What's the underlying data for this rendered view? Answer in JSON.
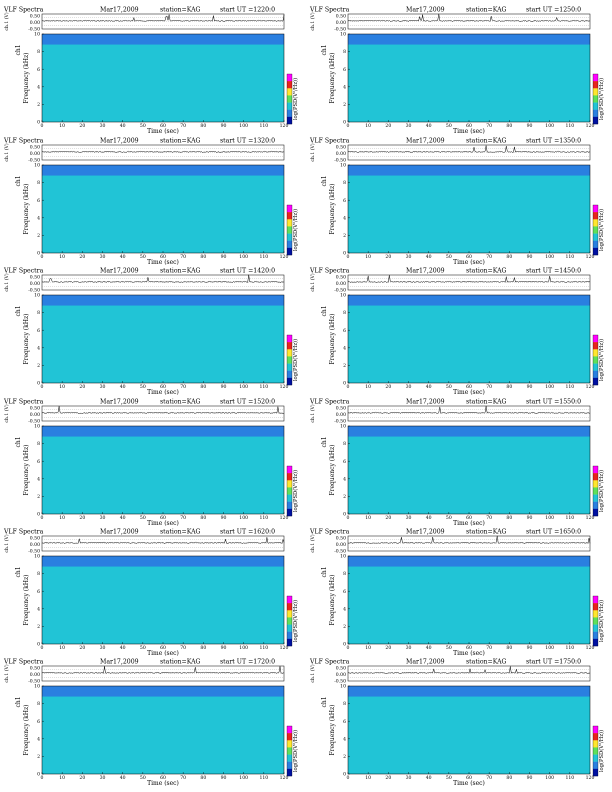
{
  "page_title": "VLF Spectra",
  "colors": {
    "background_low": "#21c4d6",
    "noise_floor_top": "#2a7fe0",
    "mid": "#5ee05a",
    "high": "#ffe62e",
    "peak": "#e8241c",
    "colorbar": [
      "#ff00ff",
      "#e8241c",
      "#ffe62e",
      "#5ee05a",
      "#21c4d6",
      "#2a7fe0",
      "#0010a0"
    ]
  },
  "chart_data": [
    {
      "type": "heatmap",
      "title": "VLF Spectra",
      "date": "Mar17,2009",
      "station": "station=KAG",
      "start_ut": "start  UT =1220:0",
      "xlabel": "Time (sec)",
      "ylabel": "Frequency (kHz)",
      "ch_label": "ch1",
      "ch_axis_label": "ch.1 (V)",
      "colorbar_label": "log(PSD(V²/Hz))",
      "xlim": [
        0,
        120
      ],
      "ylim": [
        0,
        10
      ],
      "x_ticks": [
        0,
        10,
        20,
        30,
        40,
        50,
        60,
        70,
        80,
        90,
        100,
        110,
        120
      ],
      "y_ticks": [
        0,
        2,
        4,
        6,
        8,
        10
      ],
      "ch_ticks": [
        "0.50",
        "0.00",
        "-0.50"
      ],
      "intensity_seed": 11
    },
    {
      "type": "heatmap",
      "title": "VLF Spectra",
      "date": "Mar17,2009",
      "station": "station=KAG",
      "start_ut": "start  UT =1250:0",
      "xlabel": "Time (sec)",
      "ylabel": "Frequency (kHz)",
      "ch_label": "ch1",
      "ch_axis_label": "ch.1 (V)",
      "colorbar_label": "log(PSD(V²/Hz))",
      "xlim": [
        0,
        120
      ],
      "ylim": [
        0,
        10
      ],
      "x_ticks": [
        0,
        10,
        20,
        30,
        40,
        50,
        60,
        70,
        80,
        90,
        100,
        110,
        120
      ],
      "y_ticks": [
        0,
        2,
        4,
        6,
        8,
        10
      ],
      "ch_ticks": [
        "0.50",
        "0.00",
        "-0.50"
      ],
      "intensity_seed": 23
    },
    {
      "type": "heatmap",
      "title": "VLF Spectra",
      "date": "Mar17,2009",
      "station": "station=KAG",
      "start_ut": "start  UT =1320:0",
      "xlabel": "Time (sec)",
      "ylabel": "Frequency (kHz)",
      "ch_label": "ch1",
      "ch_axis_label": "ch.1 (V)",
      "colorbar_label": "log(PSD(V²/Hz))",
      "xlim": [
        0,
        120
      ],
      "ylim": [
        0,
        10
      ],
      "x_ticks": [
        0,
        10,
        20,
        30,
        40,
        50,
        60,
        70,
        80,
        90,
        100,
        110,
        120
      ],
      "y_ticks": [
        0,
        2,
        4,
        6,
        8,
        10
      ],
      "ch_ticks": [
        "0.50",
        "0.00",
        "-0.50"
      ],
      "intensity_seed": 37
    },
    {
      "type": "heatmap",
      "title": "VLF Spectra",
      "date": "Mar17,2009",
      "station": "station=KAG",
      "start_ut": "start  UT =1350:0",
      "xlabel": "Time (sec)",
      "ylabel": "Frequency (kHz)",
      "ch_label": "ch1",
      "ch_axis_label": "ch.1 (V)",
      "colorbar_label": "log(PSD(V²/Hz))",
      "xlim": [
        0,
        120
      ],
      "ylim": [
        0,
        10
      ],
      "x_ticks": [
        0,
        10,
        20,
        30,
        40,
        50,
        60,
        70,
        80,
        90,
        100,
        110,
        120
      ],
      "y_ticks": [
        0,
        2,
        4,
        6,
        8,
        10
      ],
      "ch_ticks": [
        "0.50",
        "0.00",
        "-0.50"
      ],
      "intensity_seed": 41
    },
    {
      "type": "heatmap",
      "title": "VLF Spectra",
      "date": "Mar17,2009",
      "station": "station=KAG",
      "start_ut": "start  UT =1420:0",
      "xlabel": "Time (sec)",
      "ylabel": "Frequency (kHz)",
      "ch_label": "ch1",
      "ch_axis_label": "ch.1 (V)",
      "colorbar_label": "log(PSD(V²/Hz))",
      "xlim": [
        0,
        120
      ],
      "ylim": [
        0,
        10
      ],
      "x_ticks": [
        0,
        10,
        20,
        30,
        40,
        50,
        60,
        70,
        80,
        90,
        100,
        110,
        120
      ],
      "y_ticks": [
        0,
        2,
        4,
        6,
        8,
        10
      ],
      "ch_ticks": [
        "0.50",
        "0.00",
        "-0.50"
      ],
      "intensity_seed": 53
    },
    {
      "type": "heatmap",
      "title": "VLF Spectra",
      "date": "Mar17,2009",
      "station": "station=KAG",
      "start_ut": "start  UT =1450:0",
      "xlabel": "Time (sec)",
      "ylabel": "Frequency (kHz)",
      "ch_label": "ch1",
      "ch_axis_label": "ch.1 (V)",
      "colorbar_label": "log(PSD(V²/Hz))",
      "xlim": [
        0,
        120
      ],
      "ylim": [
        0,
        10
      ],
      "x_ticks": [
        0,
        10,
        20,
        30,
        40,
        50,
        60,
        70,
        80,
        90,
        100,
        110,
        120
      ],
      "y_ticks": [
        0,
        2,
        4,
        6,
        8,
        10
      ],
      "ch_ticks": [
        "0.50",
        "0.00",
        "-0.50"
      ],
      "intensity_seed": 67
    },
    {
      "type": "heatmap",
      "title": "VLF Spectra",
      "date": "Mar17,2009",
      "station": "station=KAG",
      "start_ut": "start  UT =1520:0",
      "xlabel": "Time (sec)",
      "ylabel": "Frequency (kHz)",
      "ch_label": "ch1",
      "ch_axis_label": "ch.1 (V)",
      "colorbar_label": "log(PSD(V²/Hz))",
      "xlim": [
        0,
        120
      ],
      "ylim": [
        0,
        10
      ],
      "x_ticks": [
        0,
        10,
        20,
        30,
        40,
        50,
        60,
        70,
        80,
        90,
        100,
        110,
        120
      ],
      "y_ticks": [
        0,
        2,
        4,
        6,
        8,
        10
      ],
      "ch_ticks": [
        "0.50",
        "0.00",
        "-0.50"
      ],
      "intensity_seed": 71
    },
    {
      "type": "heatmap",
      "title": "VLF Spectra",
      "date": "Mar17,2009",
      "station": "station=KAG",
      "start_ut": "start  UT =1550:0",
      "xlabel": "Time (sec)",
      "ylabel": "Frequency (kHz)",
      "ch_label": "ch1",
      "ch_axis_label": "ch.1 (V)",
      "colorbar_label": "log(PSD(V²/Hz))",
      "xlim": [
        0,
        120
      ],
      "ylim": [
        0,
        10
      ],
      "x_ticks": [
        0,
        10,
        20,
        30,
        40,
        50,
        60,
        70,
        80,
        90,
        100,
        110,
        120
      ],
      "y_ticks": [
        0,
        2,
        4,
        6,
        8,
        10
      ],
      "ch_ticks": [
        "0.50",
        "0.00",
        "-0.50"
      ],
      "intensity_seed": 83
    },
    {
      "type": "heatmap",
      "title": "VLF Spectra",
      "date": "Mar17,2009",
      "station": "station=KAG",
      "start_ut": "start  UT =1620:0",
      "xlabel": "Time (sec)",
      "ylabel": "Frequency (kHz)",
      "ch_label": "ch1",
      "ch_axis_label": "ch.1 (V)",
      "colorbar_label": "log(PSD(V²/Hz))",
      "xlim": [
        0,
        120
      ],
      "ylim": [
        0,
        10
      ],
      "x_ticks": [
        0,
        10,
        20,
        30,
        40,
        50,
        60,
        70,
        80,
        90,
        100,
        110,
        120
      ],
      "y_ticks": [
        0,
        2,
        4,
        6,
        8,
        10
      ],
      "ch_ticks": [
        "0.50",
        "0.00",
        "-0.50"
      ],
      "intensity_seed": 97
    },
    {
      "type": "heatmap",
      "title": "VLF Spectra",
      "date": "Mar17,2009",
      "station": "station=KAG",
      "start_ut": "start  UT =1650:0",
      "xlabel": "Time (sec)",
      "ylabel": "Frequency (kHz)",
      "ch_label": "ch1",
      "ch_axis_label": "ch.1 (V)",
      "colorbar_label": "log(PSD(V²/Hz))",
      "xlim": [
        0,
        120
      ],
      "ylim": [
        0,
        10
      ],
      "x_ticks": [
        0,
        10,
        20,
        30,
        40,
        50,
        60,
        70,
        80,
        90,
        100,
        110,
        120
      ],
      "y_ticks": [
        0,
        2,
        4,
        6,
        8,
        10
      ],
      "ch_ticks": [
        "0.50",
        "0.00",
        "-0.50"
      ],
      "intensity_seed": 101
    },
    {
      "type": "heatmap",
      "title": "VLF Spectra",
      "date": "Mar17,2009",
      "station": "station=KAG",
      "start_ut": "start  UT =1720:0",
      "xlabel": "Time (sec)",
      "ylabel": "Frequency (kHz)",
      "ch_label": "ch1",
      "ch_axis_label": "ch.1 (V)",
      "colorbar_label": "log(PSD(V²/Hz))",
      "xlim": [
        0,
        120
      ],
      "ylim": [
        0,
        10
      ],
      "x_ticks": [
        0,
        10,
        20,
        30,
        40,
        50,
        60,
        70,
        80,
        90,
        100,
        110,
        120
      ],
      "y_ticks": [
        0,
        2,
        4,
        6,
        8,
        10
      ],
      "ch_ticks": [
        "0.50",
        "0.00",
        "-0.50"
      ],
      "intensity_seed": 113
    },
    {
      "type": "heatmap",
      "title": "VLF Spectra",
      "date": "Mar17,2009",
      "station": "station=KAG",
      "start_ut": "start  UT =1750:0",
      "xlabel": "Time (sec)",
      "ylabel": "Frequency (kHz)",
      "ch_label": "ch1",
      "ch_axis_label": "ch.1 (V)",
      "colorbar_label": "log(PSD(V²/Hz))",
      "xlim": [
        0,
        120
      ],
      "ylim": [
        0,
        10
      ],
      "x_ticks": [
        0,
        10,
        20,
        30,
        40,
        50,
        60,
        70,
        80,
        90,
        100,
        110,
        120
      ],
      "y_ticks": [
        0,
        2,
        4,
        6,
        8,
        10
      ],
      "ch_ticks": [
        "0.50",
        "0.00",
        "-0.50"
      ],
      "intensity_seed": 127
    }
  ]
}
